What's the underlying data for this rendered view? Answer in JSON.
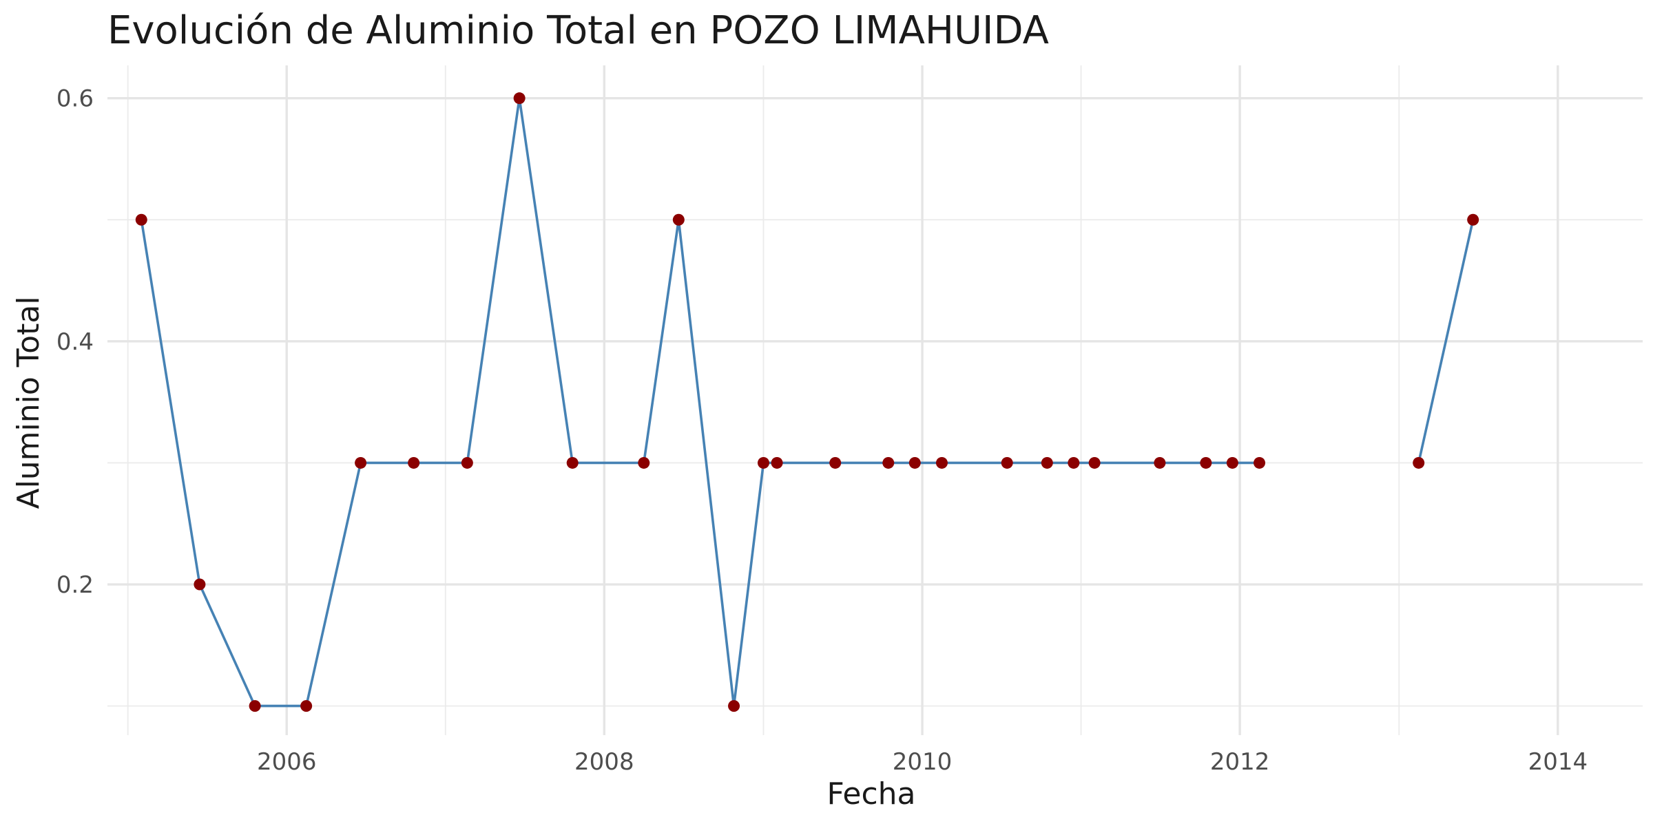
{
  "chart_data": {
    "type": "line",
    "title": "Evolución de Aluminio Total en POZO LIMAHUIDA",
    "xlabel": "Fecha",
    "ylabel": "Aluminio Total",
    "x_ticks": [
      "2006",
      "2008",
      "2010",
      "2012",
      "2014"
    ],
    "y_ticks": [
      "0.2",
      "0.4",
      "0.6"
    ],
    "xlim": [
      "2004-11-15",
      "2014-07-15"
    ],
    "ylim": [
      0.076,
      0.627
    ],
    "grid": true,
    "legend": "none",
    "line_color": "#4682b4",
    "point_color": "#8b0000",
    "series": [
      {
        "x": [
          "2005-02-01",
          "2005-06-15",
          "2005-10-20",
          "2006-02-15",
          "2006-06-20",
          "2006-10-20",
          "2007-02-20",
          "2007-06-20",
          "2007-10-20",
          "2008-04-01",
          "2008-06-20",
          "2008-10-25",
          "2009-01-01",
          "2009-02-01",
          "2009-06-15",
          "2009-10-15",
          "2009-12-15",
          "2010-02-15",
          "2010-07-15",
          "2010-10-15",
          "2010-12-15",
          "2011-02-01",
          "2011-07-01",
          "2011-10-15",
          "2011-12-15",
          "2012-02-15",
          "2013-02-15",
          "2013-06-20"
        ],
        "values": [
          0.5,
          0.2,
          0.1,
          0.1,
          0.3,
          0.3,
          0.3,
          0.6,
          0.3,
          0.3,
          0.5,
          0.1,
          0.3,
          0.3,
          0.3,
          0.3,
          0.3,
          0.3,
          0.3,
          0.3,
          0.3,
          0.3,
          0.3,
          0.3,
          0.3,
          0.3,
          0.3,
          0.5
        ],
        "segments": [
          [
            0,
            25
          ],
          [
            26,
            27
          ]
        ]
      }
    ]
  }
}
